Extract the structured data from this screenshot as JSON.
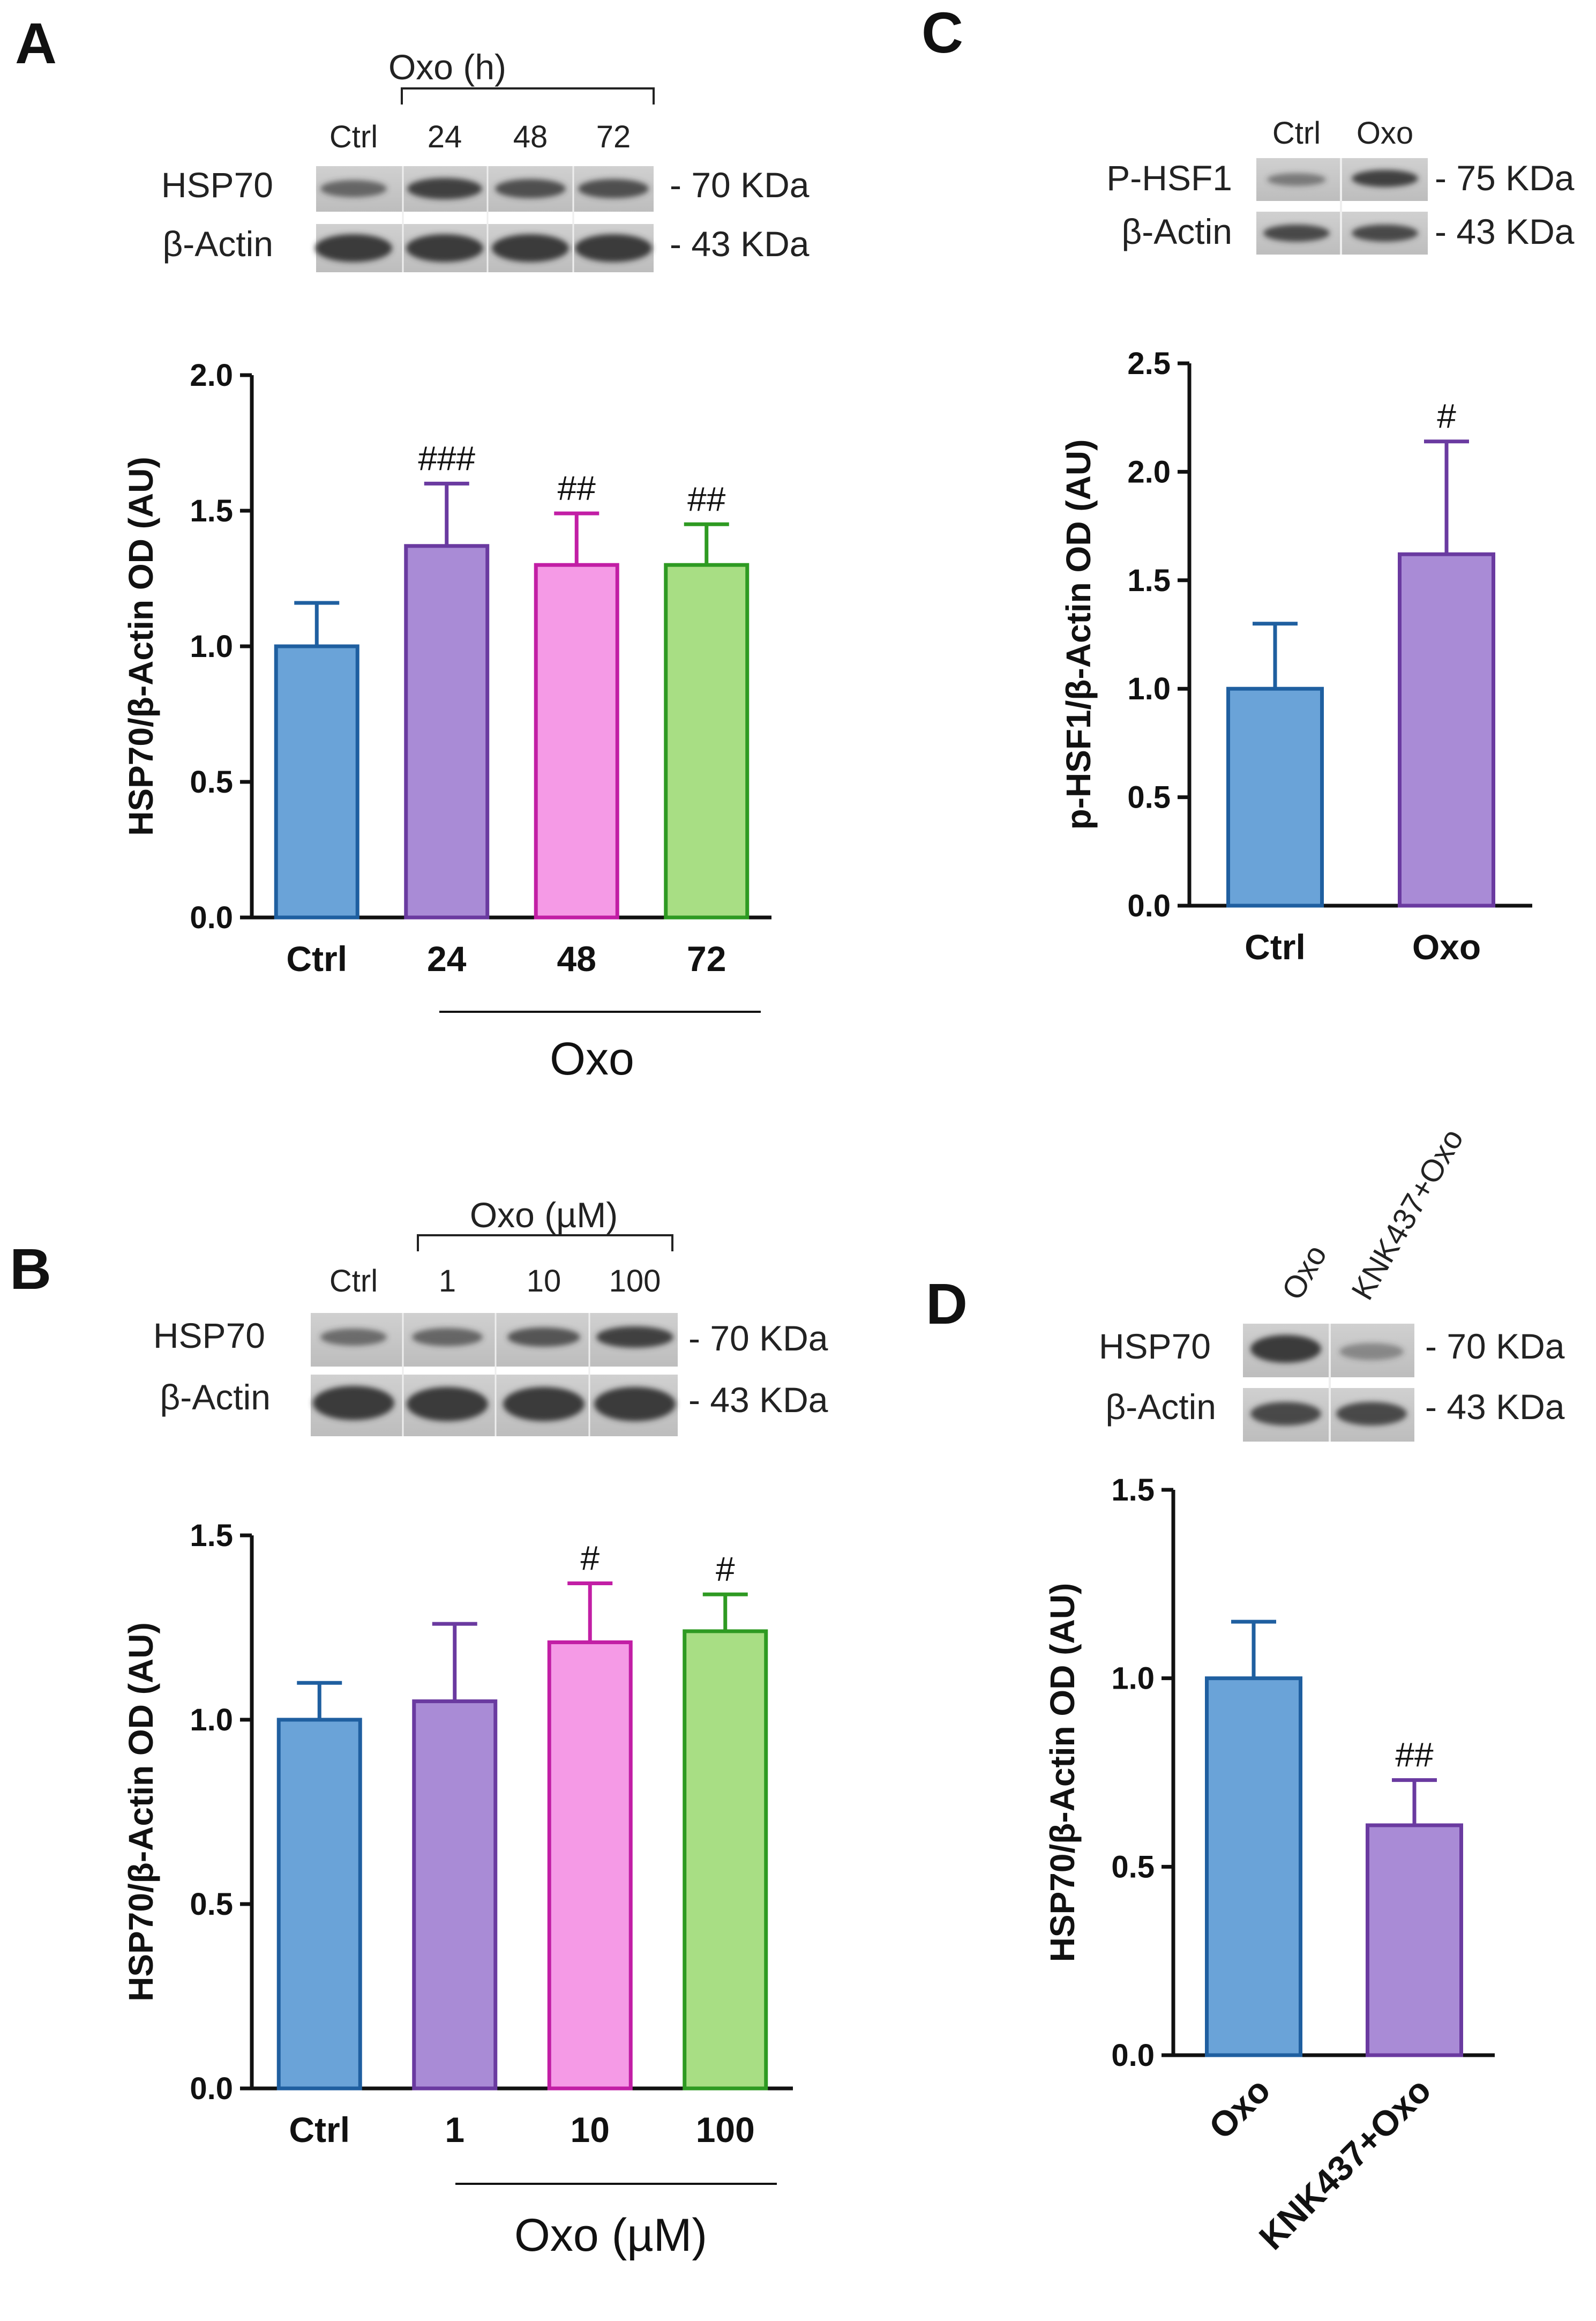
{
  "colors": {
    "ctrl_fill": "#6aa3d8",
    "ctrl_stroke": "#1f5fa0",
    "purple_fill": "#a98bd6",
    "purple_stroke": "#6a3aa0",
    "pink_fill": "#f59ae6",
    "pink_stroke": "#c21ea5",
    "green_fill": "#a8de84",
    "green_stroke": "#2e9a22"
  },
  "panels": {
    "A": {
      "letter": "A",
      "blot": {
        "group_label": "Oxo (h)",
        "lanes": [
          "Ctrl",
          "24",
          "48",
          "72"
        ],
        "rows": [
          {
            "protein": "HSP70",
            "size": "- 70 KDa"
          },
          {
            "protein": "β-Actin",
            "size": "- 43 KDa"
          }
        ]
      },
      "group_label": "Oxo"
    },
    "B": {
      "letter": "B",
      "blot": {
        "group_label": "Oxo (µM)",
        "lanes": [
          "Ctrl",
          "1",
          "10",
          "100"
        ],
        "rows": [
          {
            "protein": "HSP70",
            "size": "- 70 KDa"
          },
          {
            "protein": "β-Actin",
            "size": "- 43 KDa"
          }
        ]
      },
      "group_label": "Oxo (µM)"
    },
    "C": {
      "letter": "C",
      "blot": {
        "lanes": [
          "Ctrl",
          "Oxo"
        ],
        "rows": [
          {
            "protein": "P-HSF1",
            "size": "- 75 KDa"
          },
          {
            "protein": "β-Actin",
            "size": "- 43 KDa"
          }
        ]
      }
    },
    "D": {
      "letter": "D",
      "blot": {
        "lanes": [
          "Oxo",
          "KNK437+Oxo"
        ],
        "rows": [
          {
            "protein": "HSP70",
            "size": "- 70 KDa"
          },
          {
            "protein": "β-Actin",
            "size": "- 43 KDa"
          }
        ]
      }
    }
  },
  "chart_data": [
    {
      "id": "A",
      "type": "bar",
      "categories": [
        "Ctrl",
        "24",
        "48",
        "72"
      ],
      "values": [
        1.0,
        1.37,
        1.3,
        1.3
      ],
      "errors": [
        0.16,
        0.23,
        0.19,
        0.15
      ],
      "significance": [
        "",
        "###",
        "##",
        "##"
      ],
      "colors": [
        "ctrl",
        "purple",
        "pink",
        "green"
      ],
      "ylabel": "HSP70/β-Actin OD (AU)",
      "ylim": [
        0,
        2.0
      ],
      "yticks": [
        "0.0",
        "0.5",
        "1.0",
        "1.5",
        "2.0"
      ],
      "group_label": "Oxo"
    },
    {
      "id": "B",
      "type": "bar",
      "categories": [
        "Ctrl",
        "1",
        "10",
        "100"
      ],
      "values": [
        1.0,
        1.05,
        1.21,
        1.24
      ],
      "errors": [
        0.1,
        0.21,
        0.16,
        0.1
      ],
      "significance": [
        "",
        "",
        "#",
        "#"
      ],
      "colors": [
        "ctrl",
        "purple",
        "pink",
        "green"
      ],
      "ylabel": "HSP70/β-Actin OD (AU)",
      "ylim": [
        0,
        1.5
      ],
      "yticks": [
        "0.0",
        "0.5",
        "1.0",
        "1.5"
      ],
      "group_label": "Oxo (µM)"
    },
    {
      "id": "C",
      "type": "bar",
      "categories": [
        "Ctrl",
        "Oxo"
      ],
      "values": [
        1.0,
        1.62
      ],
      "errors": [
        0.3,
        0.52
      ],
      "significance": [
        "",
        "#"
      ],
      "colors": [
        "ctrl",
        "purple"
      ],
      "ylabel": "p-HSF1/β-Actin OD (AU)",
      "ylim": [
        0,
        2.5
      ],
      "yticks": [
        "0.0",
        "0.5",
        "1.0",
        "1.5",
        "2.0",
        "2.5"
      ]
    },
    {
      "id": "D",
      "type": "bar",
      "categories": [
        "Oxo",
        "KNK437+Oxo"
      ],
      "values": [
        1.0,
        0.61
      ],
      "errors": [
        0.15,
        0.12
      ],
      "significance": [
        "",
        "##"
      ],
      "colors": [
        "ctrl",
        "purple"
      ],
      "ylabel": "HSP70/β-Actin OD (AU)",
      "ylim": [
        0,
        1.5
      ],
      "yticks": [
        "0.0",
        "0.5",
        "1.0",
        "1.5"
      ],
      "rotated_labels": true
    }
  ]
}
